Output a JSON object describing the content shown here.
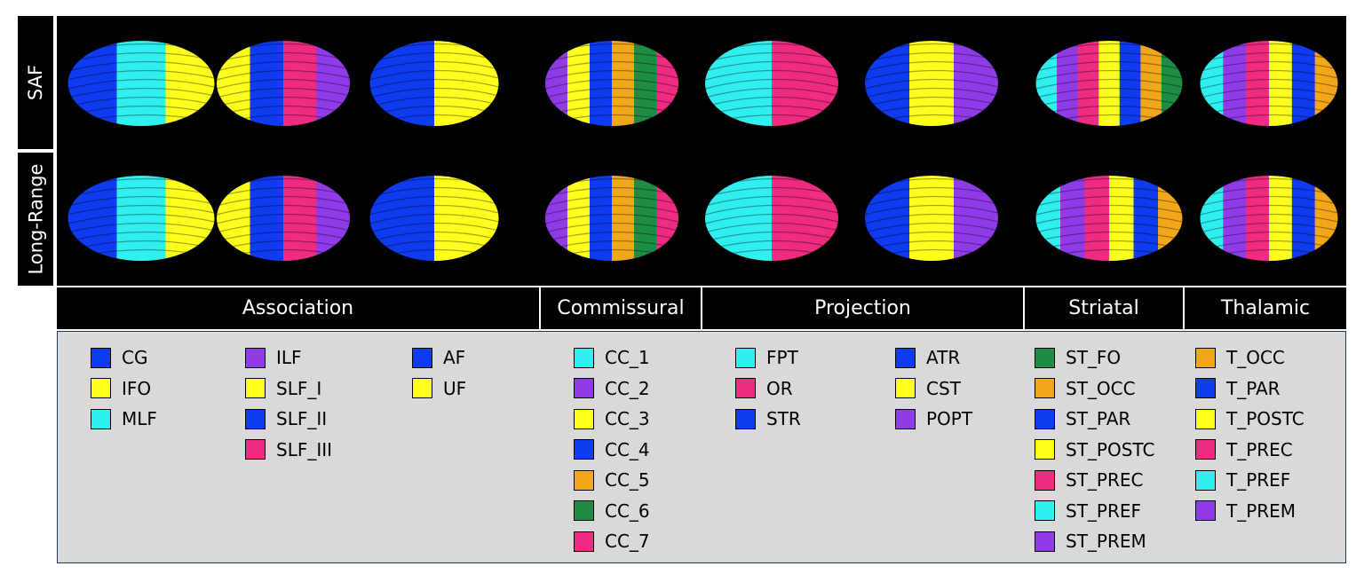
{
  "row_labels": {
    "saf": "SAF",
    "long_range": "Long-Range"
  },
  "colors": {
    "cyan": "#2ff0ef",
    "purple": "#8f3be8",
    "yellow": "#ffff1e",
    "blue": "#0f3cf0",
    "orange": "#f2a71b",
    "green": "#1e8c45",
    "pink": "#ef2c80"
  },
  "categories": [
    {
      "label": "Association"
    },
    {
      "label": "Commissural"
    },
    {
      "label": "Projection"
    },
    {
      "label": "Striatal"
    },
    {
      "label": "Thalamic"
    }
  ],
  "legend": {
    "association": [
      [
        {
          "label": "CG",
          "color": "#0f3cf0"
        },
        {
          "label": "IFO",
          "color": "#ffff1e"
        },
        {
          "label": "MLF",
          "color": "#2ff0ef"
        }
      ],
      [
        {
          "label": "ILF",
          "color": "#8f3be8"
        },
        {
          "label": "SLF_I",
          "color": "#ffff1e"
        },
        {
          "label": "SLF_II",
          "color": "#0f3cf0"
        },
        {
          "label": "SLF_III",
          "color": "#ef2c80"
        }
      ],
      [
        {
          "label": "AF",
          "color": "#0f3cf0"
        },
        {
          "label": "UF",
          "color": "#ffff1e"
        }
      ]
    ],
    "commissural": [
      [
        {
          "label": "CC_1",
          "color": "#2ff0ef"
        },
        {
          "label": "CC_2",
          "color": "#8f3be8"
        },
        {
          "label": "CC_3",
          "color": "#ffff1e"
        },
        {
          "label": "CC_4",
          "color": "#0f3cf0"
        },
        {
          "label": "CC_5",
          "color": "#f2a71b"
        },
        {
          "label": "CC_6",
          "color": "#1e8c45"
        },
        {
          "label": "CC_7",
          "color": "#ef2c80"
        }
      ]
    ],
    "projection": [
      [
        {
          "label": "FPT",
          "color": "#2ff0ef"
        },
        {
          "label": "OR",
          "color": "#ef2c80"
        },
        {
          "label": "STR",
          "color": "#0f3cf0"
        }
      ],
      [
        {
          "label": "ATR",
          "color": "#0f3cf0"
        },
        {
          "label": "CST",
          "color": "#ffff1e"
        },
        {
          "label": "POPT",
          "color": "#8f3be8"
        }
      ]
    ],
    "striatal": [
      [
        {
          "label": "ST_FO",
          "color": "#1e8c45"
        },
        {
          "label": "ST_OCC",
          "color": "#f2a71b"
        },
        {
          "label": "ST_PAR",
          "color": "#0f3cf0"
        },
        {
          "label": "ST_POSTC",
          "color": "#ffff1e"
        },
        {
          "label": "ST_PREC",
          "color": "#ef2c80"
        },
        {
          "label": "ST_PREF",
          "color": "#2ff0ef"
        },
        {
          "label": "ST_PREM",
          "color": "#8f3be8"
        }
      ]
    ],
    "thalamic": [
      [
        {
          "label": "T_OCC",
          "color": "#f2a71b"
        },
        {
          "label": "T_PAR",
          "color": "#0f3cf0"
        },
        {
          "label": "T_POSTC",
          "color": "#ffff1e"
        },
        {
          "label": "T_PREC",
          "color": "#ef2c80"
        },
        {
          "label": "T_PREF",
          "color": "#2ff0ef"
        },
        {
          "label": "T_PREM",
          "color": "#8f3be8"
        }
      ]
    ]
  },
  "tract_images": {
    "saf": [
      {
        "name": "association-1",
        "colors": [
          "#0f3cf0",
          "#2ff0ef",
          "#ffff1e"
        ]
      },
      {
        "name": "association-2",
        "colors": [
          "#ffff1e",
          "#0f3cf0",
          "#ef2c80",
          "#8f3be8"
        ]
      },
      {
        "name": "association-3",
        "colors": [
          "#0f3cf0",
          "#ffff1e"
        ]
      },
      {
        "name": "commissural",
        "colors": [
          "#8f3be8",
          "#ffff1e",
          "#0f3cf0",
          "#f2a71b",
          "#1e8c45",
          "#ef2c80"
        ]
      },
      {
        "name": "projection-1",
        "colors": [
          "#2ff0ef",
          "#ef2c80"
        ]
      },
      {
        "name": "projection-2",
        "colors": [
          "#0f3cf0",
          "#ffff1e",
          "#8f3be8"
        ]
      },
      {
        "name": "striatal",
        "colors": [
          "#2ff0ef",
          "#8f3be8",
          "#ef2c80",
          "#ffff1e",
          "#0f3cf0",
          "#f2a71b",
          "#1e8c45"
        ]
      },
      {
        "name": "thalamic",
        "colors": [
          "#2ff0ef",
          "#8f3be8",
          "#ef2c80",
          "#ffff1e",
          "#0f3cf0",
          "#f2a71b"
        ]
      }
    ],
    "long_range": [
      {
        "name": "association-1",
        "colors": [
          "#0f3cf0",
          "#2ff0ef",
          "#ffff1e"
        ]
      },
      {
        "name": "association-2",
        "colors": [
          "#ffff1e",
          "#0f3cf0",
          "#ef2c80",
          "#8f3be8"
        ]
      },
      {
        "name": "association-3",
        "colors": [
          "#0f3cf0",
          "#ffff1e"
        ]
      },
      {
        "name": "commissural",
        "colors": [
          "#8f3be8",
          "#ffff1e",
          "#0f3cf0",
          "#f2a71b",
          "#1e8c45",
          "#ef2c80"
        ]
      },
      {
        "name": "projection-1",
        "colors": [
          "#2ff0ef",
          "#ef2c80"
        ]
      },
      {
        "name": "projection-2",
        "colors": [
          "#0f3cf0",
          "#ffff1e",
          "#8f3be8"
        ]
      },
      {
        "name": "striatal",
        "colors": [
          "#2ff0ef",
          "#8f3be8",
          "#ef2c80",
          "#ffff1e",
          "#0f3cf0",
          "#f2a71b"
        ]
      },
      {
        "name": "thalamic",
        "colors": [
          "#2ff0ef",
          "#8f3be8",
          "#ef2c80",
          "#ffff1e",
          "#0f3cf0",
          "#f2a71b"
        ]
      }
    ]
  }
}
